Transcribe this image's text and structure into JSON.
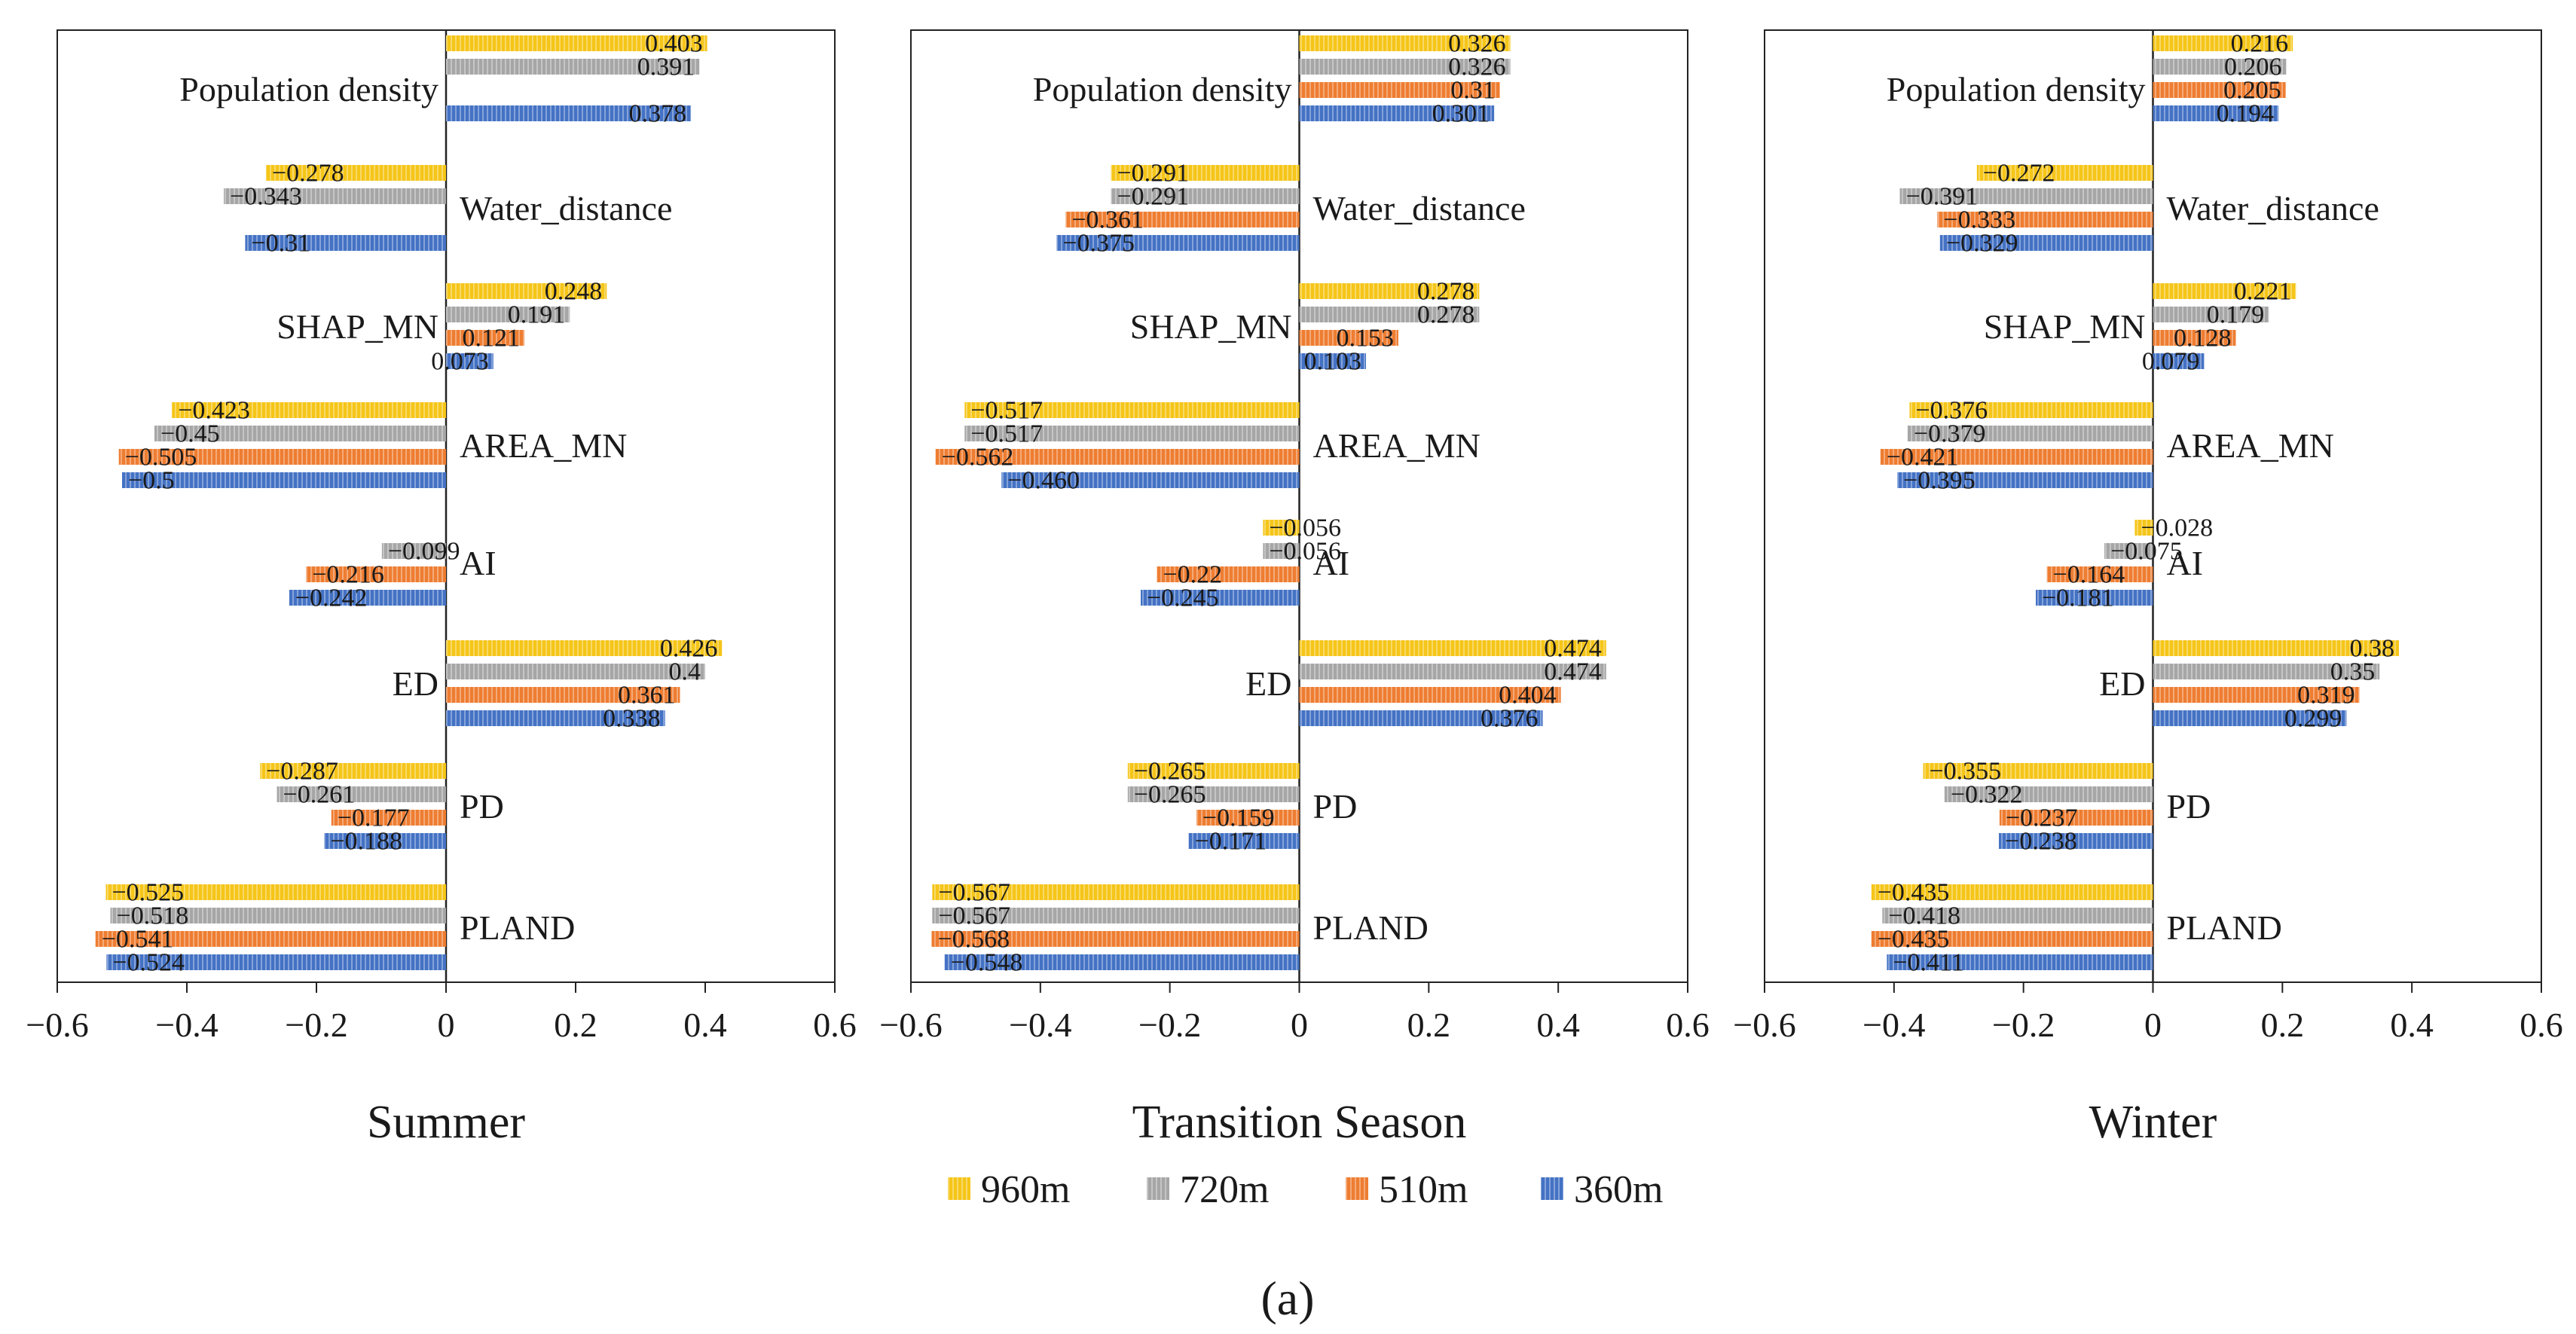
{
  "figure_label": "(a)",
  "legend": [
    {
      "name": "960m",
      "color": "#F5C518"
    },
    {
      "name": "720m",
      "color": "#A6A6A6"
    },
    {
      "name": "510m",
      "color": "#EE7D31"
    },
    {
      "name": "360m",
      "color": "#4472C4"
    }
  ],
  "chart_data": [
    {
      "type": "bar",
      "orientation": "horizontal",
      "title": "Summer",
      "xlim": [
        -0.6,
        0.6
      ],
      "xticks": [
        "−0.6",
        "−0.4",
        "−0.2",
        "0",
        "0.2",
        "0.4",
        "0.6"
      ],
      "categories": [
        "Population density",
        "Water_distance",
        "SHAP_MN",
        "AREA_MN",
        "AI",
        "ED",
        "PD",
        "PLAND"
      ],
      "series": [
        {
          "name": "960m",
          "values": [
            0.403,
            -0.278,
            0.248,
            -0.423,
            null,
            0.426,
            -0.287,
            -0.525
          ],
          "labels": [
            "0.403",
            "−0.278",
            "0.248",
            "−0.423",
            "",
            "0.426",
            "−0.287",
            "−0.525"
          ]
        },
        {
          "name": "720m",
          "values": [
            0.391,
            -0.343,
            0.191,
            -0.45,
            -0.099,
            0.4,
            -0.261,
            -0.518
          ],
          "labels": [
            "0.391",
            "−0.343",
            "0.191",
            "−0.45",
            "−0.099",
            "0.4",
            "−0.261",
            "−0.518"
          ]
        },
        {
          "name": "510m",
          "values": [
            null,
            null,
            0.121,
            -0.505,
            -0.216,
            0.361,
            -0.177,
            -0.541
          ],
          "labels": [
            "",
            "",
            "0.121",
            "−0.505",
            "−0.216",
            "0.361",
            "−0.177",
            "−0.541"
          ]
        },
        {
          "name": "360m",
          "values": [
            0.378,
            -0.31,
            0.073,
            -0.5,
            -0.242,
            0.338,
            -0.188,
            -0.524
          ],
          "labels": [
            "0.378",
            "−0.31",
            "0.073",
            "−0.5",
            "−0.242",
            "0.338",
            "−0.188",
            "−0.524"
          ]
        }
      ]
    },
    {
      "type": "bar",
      "orientation": "horizontal",
      "title": "Transition Season",
      "xlim": [
        -0.6,
        0.6
      ],
      "xticks": [
        "−0.6",
        "−0.4",
        "−0.2",
        "0",
        "0.2",
        "0.4",
        "0.6"
      ],
      "categories": [
        "Population density",
        "Water_distance",
        "SHAP_MN",
        "AREA_MN",
        "AI",
        "ED",
        "PD",
        "PLAND"
      ],
      "series": [
        {
          "name": "960m",
          "values": [
            0.326,
            -0.291,
            0.278,
            -0.517,
            -0.056,
            0.474,
            -0.265,
            -0.567
          ],
          "labels": [
            "0.326",
            "−0.291",
            "0.278",
            "−0.517",
            "−0.056",
            "0.474",
            "−0.265",
            "−0.567"
          ]
        },
        {
          "name": "720m",
          "values": [
            0.326,
            -0.291,
            0.278,
            -0.517,
            -0.056,
            0.474,
            -0.265,
            -0.567
          ],
          "labels": [
            "0.326",
            "−0.291",
            "0.278",
            "−0.517",
            "−0.056",
            "0.474",
            "−0.265",
            "−0.567"
          ]
        },
        {
          "name": "510m",
          "values": [
            0.31,
            -0.361,
            0.153,
            -0.562,
            -0.22,
            0.404,
            -0.159,
            -0.568
          ],
          "labels": [
            "0.31",
            "−0.361",
            "0.153",
            "−0.562",
            "−0.22",
            "0.404",
            "−0.159",
            "−0.568"
          ]
        },
        {
          "name": "360m",
          "values": [
            0.301,
            -0.375,
            0.103,
            -0.46,
            -0.245,
            0.376,
            -0.171,
            -0.548
          ],
          "labels": [
            "0.301",
            "−0.375",
            "0.103",
            "−0.460",
            "−0.245",
            "0.376",
            "−0.171",
            "−0.548"
          ]
        }
      ]
    },
    {
      "type": "bar",
      "orientation": "horizontal",
      "title": "Winter",
      "xlim": [
        -0.6,
        0.6
      ],
      "xticks": [
        "−0.6",
        "−0.4",
        "−0.2",
        "0",
        "0.2",
        "0.4",
        "0.6"
      ],
      "categories": [
        "Population density",
        "Water_distance",
        "SHAP_MN",
        "AREA_MN",
        "AI",
        "ED",
        "PD",
        "PLAND"
      ],
      "series": [
        {
          "name": "960m",
          "values": [
            0.216,
            -0.272,
            0.221,
            -0.376,
            -0.028,
            0.38,
            -0.355,
            -0.435
          ],
          "labels": [
            "0.216",
            "−0.272",
            "0.221",
            "−0.376",
            "−0.028",
            "0.38",
            "−0.355",
            "−0.435"
          ]
        },
        {
          "name": "720m",
          "values": [
            0.206,
            -0.391,
            0.179,
            -0.379,
            -0.075,
            0.35,
            -0.322,
            -0.418
          ],
          "labels": [
            "0.206",
            "−0.391",
            "0.179",
            "−0.379",
            "−0.075",
            "0.35",
            "−0.322",
            "−0.418"
          ]
        },
        {
          "name": "510m",
          "values": [
            0.205,
            -0.333,
            0.128,
            -0.421,
            -0.164,
            0.319,
            -0.237,
            -0.435
          ],
          "labels": [
            "0.205",
            "−0.333",
            "0.128",
            "−0.421",
            "−0.164",
            "0.319",
            "−0.237",
            "−0.435"
          ]
        },
        {
          "name": "360m",
          "values": [
            0.194,
            -0.329,
            0.079,
            -0.395,
            -0.181,
            0.299,
            -0.238,
            -0.411
          ],
          "labels": [
            "0.194",
            "−0.329",
            "0.079",
            "−0.395",
            "−0.181",
            "0.299",
            "−0.238",
            "−0.411"
          ]
        }
      ]
    }
  ]
}
